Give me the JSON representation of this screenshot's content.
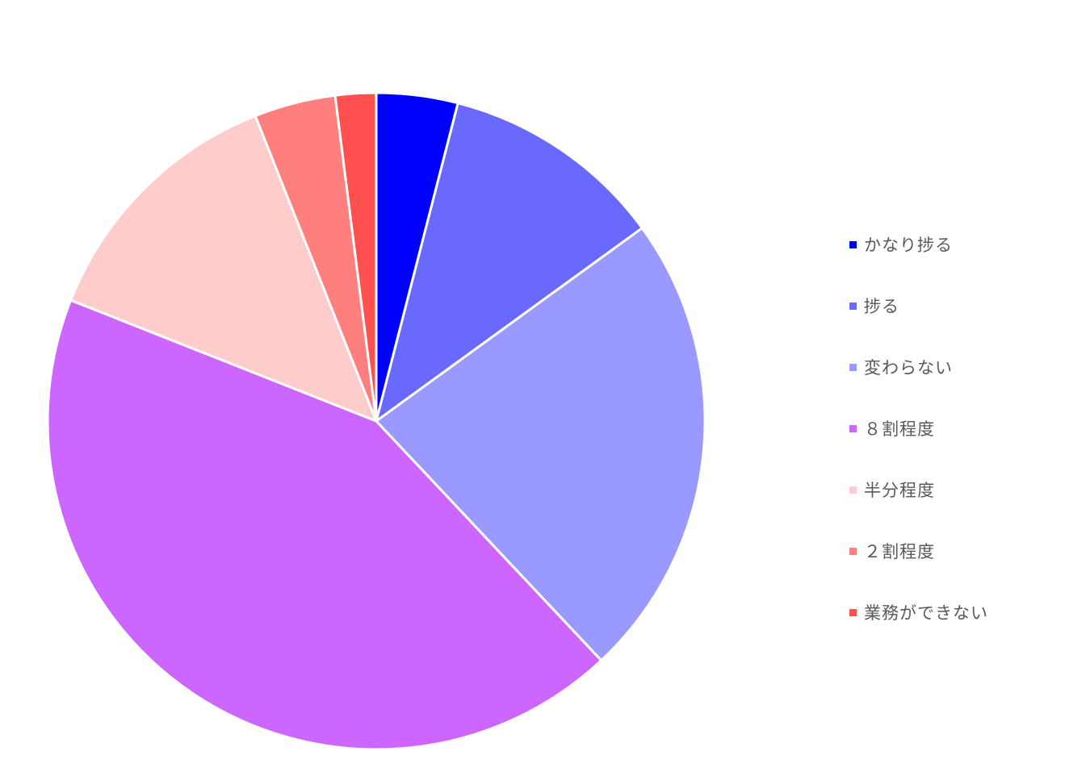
{
  "chart_data": {
    "type": "pie",
    "categories": [
      "かなり捗る",
      "捗る",
      "変わらない",
      "８割程度",
      "半分程度",
      "２割程度",
      "業務ができない"
    ],
    "values": [
      4,
      11,
      23,
      43,
      13,
      4,
      2
    ],
    "colors": [
      "#0000FF",
      "#6969FF",
      "#9999FF",
      "#CC66FF",
      "#FFCCCC",
      "#FF7F7F",
      "#FF5050"
    ],
    "title": "",
    "legend_position": "right",
    "start_angle": "12 o'clock",
    "direction": "clockwise"
  },
  "legend": {
    "items": [
      {
        "label": "かなり捗る",
        "color": "#0000FF"
      },
      {
        "label": "捗る",
        "color": "#6969FF"
      },
      {
        "label": "変わらない",
        "color": "#9999FF"
      },
      {
        "label": "８割程度",
        "color": "#CC66FF"
      },
      {
        "label": "半分程度",
        "color": "#FFCCCC"
      },
      {
        "label": "２割程度",
        "color": "#FF7F7F"
      },
      {
        "label": "業務ができない",
        "color": "#FF5050"
      }
    ]
  }
}
